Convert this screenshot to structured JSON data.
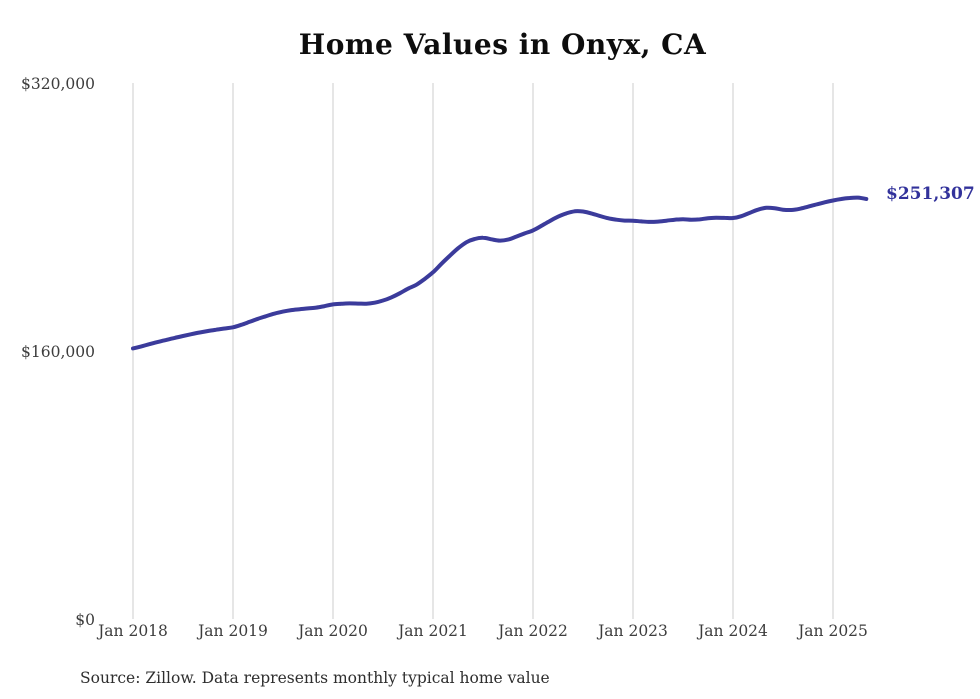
{
  "chart_data": {
    "type": "line",
    "title": "Home Values in Onyx, CA",
    "xlabel": "",
    "ylabel": "",
    "ylim": [
      0,
      320000
    ],
    "grid": "vertical-only",
    "gridline_color": "#cccccc",
    "background_color": "#ffffff",
    "y_ticks": [
      {
        "label": "$0",
        "value": 0
      },
      {
        "label": "$160,000",
        "value": 160000
      },
      {
        "label": "$320,000",
        "value": 320000
      }
    ],
    "x_ticks": [
      {
        "label": "Jan 2018",
        "month_index": 0
      },
      {
        "label": "Jan 2019",
        "month_index": 12
      },
      {
        "label": "Jan 2020",
        "month_index": 24
      },
      {
        "label": "Jan 2021",
        "month_index": 36
      },
      {
        "label": "Jan 2022",
        "month_index": 48
      },
      {
        "label": "Jan 2023",
        "month_index": 60
      },
      {
        "label": "Jan 2024",
        "month_index": 72
      },
      {
        "label": "Jan 2025",
        "month_index": 84
      }
    ],
    "series": [
      {
        "name": "Monthly typical home value",
        "color": "#3b3b9b",
        "start": "Jan 2018",
        "interval": "month",
        "values": [
          162000,
          163200,
          164600,
          165900,
          167100,
          168300,
          169400,
          170500,
          171500,
          172400,
          173200,
          173900,
          174600,
          176100,
          177900,
          179700,
          181300,
          182800,
          184000,
          184900,
          185400,
          185900,
          186400,
          187300,
          188300,
          188700,
          188900,
          188800,
          188700,
          189300,
          190600,
          192500,
          194900,
          197700,
          200000,
          203500,
          207500,
          212500,
          217300,
          221800,
          225400,
          227400,
          228100,
          227200,
          226400,
          227000,
          228800,
          230700,
          232500,
          235200,
          238100,
          240700,
          242700,
          243900,
          243800,
          242700,
          241200,
          239800,
          238900,
          238400,
          238300,
          237900,
          237600,
          237800,
          238300,
          238900,
          239200,
          238900,
          239100,
          239800,
          240100,
          240000,
          239900,
          241000,
          243000,
          244900,
          246000,
          245800,
          244900,
          244700,
          245400,
          246700,
          248000,
          249300,
          250400,
          251300,
          251900,
          252100,
          251307
        ]
      }
    ],
    "end_label": "$251,307",
    "source": "Source: Zillow. Data represents monthly typical home value"
  }
}
